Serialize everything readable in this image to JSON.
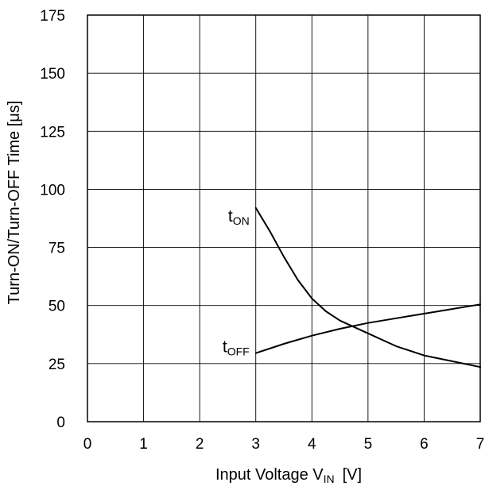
{
  "chart_data": {
    "type": "line",
    "title": "",
    "xlabel": "Input Voltage V",
    "xlabel_sub": "IN",
    "xlabel_unit": "[V]",
    "ylabel": "Turn-ON/Turn-OFF Time [μs]",
    "xlim": [
      0,
      7
    ],
    "ylim": [
      0,
      175
    ],
    "xticks": [
      0,
      1,
      2,
      3,
      4,
      5,
      6,
      7
    ],
    "yticks": [
      0,
      25,
      50,
      75,
      100,
      125,
      150,
      175
    ],
    "grid": true,
    "legend": "none",
    "series": [
      {
        "name": "tON",
        "label_main": "t",
        "label_sub": "ON",
        "x": [
          3.0,
          3.25,
          3.5,
          3.75,
          4.0,
          4.25,
          4.5,
          5.0,
          5.5,
          6.0,
          6.5,
          7.0
        ],
        "y": [
          92,
          82,
          71,
          61,
          53,
          47.5,
          43.5,
          38,
          32.5,
          28.5,
          26,
          23.5
        ]
      },
      {
        "name": "tOFF",
        "label_main": "t",
        "label_sub": "OFF",
        "x": [
          3.0,
          3.5,
          4.0,
          4.5,
          5.0,
          5.5,
          6.0,
          6.5,
          7.0
        ],
        "y": [
          29.5,
          33.5,
          37,
          40,
          42.5,
          44.5,
          46.5,
          48.5,
          50.5
        ]
      }
    ]
  }
}
